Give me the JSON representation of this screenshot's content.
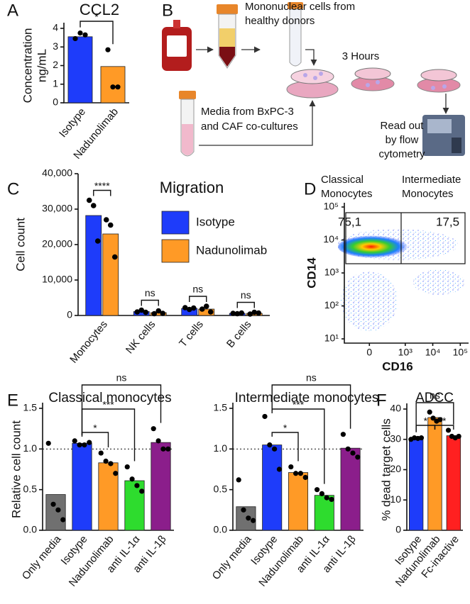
{
  "panel_labels": [
    "A",
    "B",
    "C",
    "D",
    "E",
    "F"
  ],
  "diagram": {
    "texts": {
      "donors": [
        "Mononuclear cells from",
        "healthy donors"
      ],
      "time": "3 Hours",
      "media": [
        "Media from BxPC-3",
        "and CAF co-cultures"
      ],
      "readout": [
        "Read out",
        "by flow",
        "cytometry"
      ]
    }
  },
  "chart_data": [
    {
      "type": "bar",
      "title": "CCL2",
      "y_label": [
        "Concentration",
        "ng/mL"
      ],
      "categories": [
        "Isotype",
        "Nadunolimab"
      ],
      "values": [
        3.55,
        1.95
      ],
      "colors": [
        "#1e3cfa",
        "#ff9a26"
      ],
      "points": [
        [
          3.45,
          3.75,
          3.65
        ],
        [
          2.85,
          0.85,
          0.85
        ]
      ],
      "ylim": [
        0,
        4
      ],
      "yticks": [
        0,
        1,
        2,
        3,
        4
      ],
      "significance": [
        "*"
      ]
    },
    {
      "type": "grouped_bar",
      "title": "Migration",
      "y_label": "Cell count",
      "categories": [
        "Monocytes",
        "NK cells",
        "T cells",
        "B cells"
      ],
      "series": [
        {
          "name": "Isotype",
          "color": "#1e3cfa",
          "values": [
            28200,
            1100,
            2000,
            600
          ],
          "points": [
            [
              32500,
              31000,
              21000
            ],
            [
              1000,
              1500,
              900
            ],
            [
              2200,
              1700,
              2100
            ],
            [
              600,
              500,
              700
            ]
          ]
        },
        {
          "name": "Nadunolimab",
          "color": "#ff9a26",
          "values": [
            23000,
            800,
            1800,
            600
          ],
          "points": [
            [
              27000,
              25500,
              16500
            ],
            [
              500,
              1300,
              600
            ],
            [
              1800,
              2600,
              1000
            ],
            [
              400,
              900,
              700
            ]
          ]
        }
      ],
      "ylim": [
        0,
        40000
      ],
      "yticks": [
        0,
        {
          "value": 10000,
          "label": "10,000"
        },
        {
          "value": 20000,
          "label": "20,000"
        },
        {
          "value": 30000,
          "label": "30,000"
        },
        {
          "value": 40000,
          "label": "40,000"
        }
      ],
      "significance": [
        "****",
        "ns",
        "ns",
        "ns"
      ],
      "legend": "upper right"
    },
    {
      "type": "flow_density",
      "x_label": "CD16",
      "y_label": "CD14",
      "xscale": "asinh",
      "yscale": "log",
      "xlim": [
        -400,
        200000
      ],
      "ylim": [
        10,
        100000
      ],
      "xticks": [
        0,
        {
          "value": 1000,
          "label": "10³"
        },
        {
          "value": 10000,
          "label": "10⁴"
        },
        {
          "value": 100000,
          "label": "10⁵"
        }
      ],
      "yticks": [
        {
          "value": 10,
          "label": "10¹"
        },
        {
          "value": 100,
          "label": "10²"
        },
        {
          "value": 1000,
          "label": "10³"
        },
        {
          "value": 10000,
          "label": "10⁴"
        },
        {
          "value": 100000,
          "label": "10⁵"
        }
      ],
      "gates": [
        {
          "name": [
            "Classical",
            "Monocytes"
          ],
          "label": "75,1"
        },
        {
          "name": [
            "Intermediate",
            "Monocytes"
          ],
          "label": "17,5"
        }
      ]
    },
    {
      "type": "bar",
      "title": "Classical monocytes",
      "y_label": "Relative cell count",
      "categories": [
        "Only media",
        "Isotype",
        "Nadunolimab",
        "anti IL-1α",
        "anti IL-1β"
      ],
      "values": [
        0.44,
        1.07,
        0.83,
        0.61,
        1.08
      ],
      "colors": [
        "#707070",
        "#1e3cfa",
        "#ff9a26",
        "#2edc2e",
        "#8b1e8b"
      ],
      "points": [
        [
          1.07,
          0.32,
          0.25,
          0.13
        ],
        [
          1.1,
          1.05,
          1.05,
          1.08
        ],
        [
          0.95,
          0.85,
          0.82,
          0.7
        ],
        [
          0.78,
          0.63,
          0.55,
          0.48
        ],
        [
          1.25,
          1.1,
          1.0,
          1.0
        ]
      ],
      "ylim": [
        0,
        1.5
      ],
      "yticks": [
        {
          "value": 0,
          "label": "0.0"
        },
        {
          "value": 0.5,
          "label": "0.5"
        },
        {
          "value": 1,
          "label": "1.0"
        },
        {
          "value": 1.5,
          "label": "1.5"
        }
      ],
      "reference_line": 1,
      "significance": [
        "*",
        "***",
        "ns"
      ]
    },
    {
      "type": "bar",
      "title": "Intermediate monocytes",
      "categories": [
        "Only media",
        "Isotype",
        "Nadunolimab",
        "anti IL-1α",
        "anti IL-1β"
      ],
      "values": [
        0.29,
        1.05,
        0.71,
        0.43,
        1.01
      ],
      "colors": [
        "#707070",
        "#1e3cfa",
        "#ff9a26",
        "#2edc2e",
        "#8b1e8b"
      ],
      "points": [
        [
          0.62,
          0.25,
          0.15,
          0.12
        ],
        [
          1.4,
          1.05,
          1.0,
          0.75
        ],
        [
          0.78,
          0.7,
          0.7,
          0.65
        ],
        [
          0.5,
          0.45,
          0.4,
          0.38
        ],
        [
          1.18,
          1.0,
          0.95,
          0.9
        ]
      ],
      "ylim": [
        0,
        1.5
      ],
      "yticks": [
        {
          "value": 0,
          "label": "0.0"
        },
        {
          "value": 0.5,
          "label": "0.5"
        },
        {
          "value": 1,
          "label": "1.0"
        },
        {
          "value": 1.5,
          "label": "1.5"
        }
      ],
      "reference_line": 1,
      "significance": [
        "*",
        "***",
        "ns"
      ]
    },
    {
      "type": "bar",
      "title": "ADCC",
      "y_label": "% dead target cells",
      "categories": [
        "Isotype",
        "Nadunolimab",
        "Fc-inactive"
      ],
      "values": [
        30.3,
        37.2,
        31.2
      ],
      "colors": [
        "#1e3cfa",
        "#ff9a26",
        "#ff2020"
      ],
      "points": [
        [
          30,
          30.5,
          30.3,
          30.5
        ],
        [
          39,
          37,
          36,
          36.5
        ],
        [
          33,
          31,
          30.5,
          31
        ]
      ],
      "ylim": [
        0,
        40
      ],
      "yticks": [
        0,
        10,
        20,
        30,
        40
      ],
      "significance": [
        "*",
        "*",
        "ns"
      ]
    }
  ]
}
